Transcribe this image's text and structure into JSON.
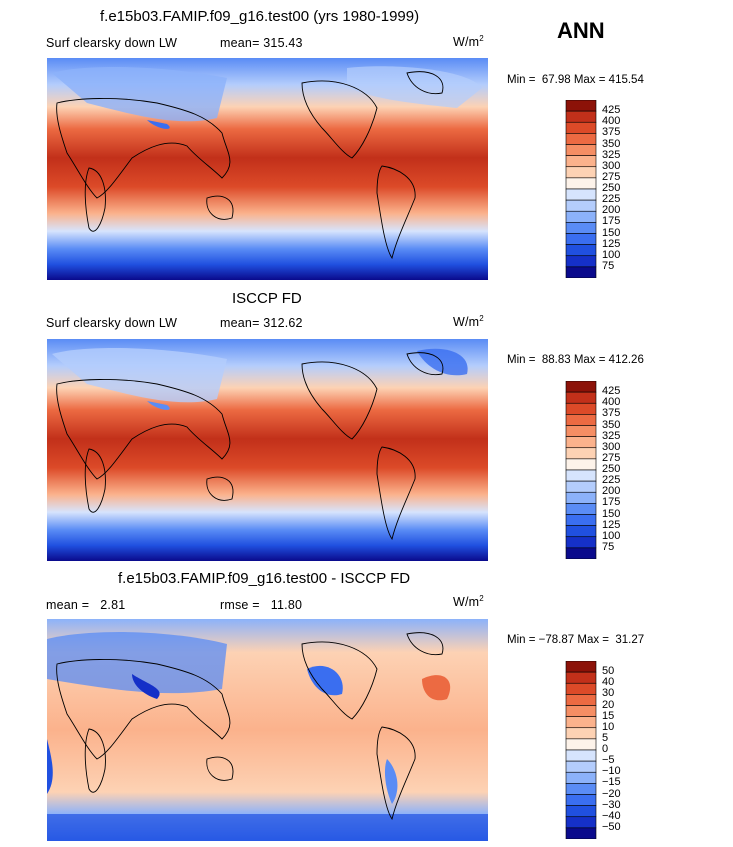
{
  "season": "ANN",
  "colors": {
    "absolute": [
      "#0a0a8c",
      "#1530c8",
      "#2050e0",
      "#3a6ef0",
      "#5a8cf5",
      "#8cb2fa",
      "#b4cdfc",
      "#d6e4fd",
      "#fdf3ea",
      "#fdd2b4",
      "#fbb28c",
      "#f58e64",
      "#ec6a42",
      "#dc4a28",
      "#c2301a",
      "#8c1208"
    ],
    "difference": [
      "#0a0a8c",
      "#1530c8",
      "#2050e0",
      "#3a6ef0",
      "#5a8cf5",
      "#8cb2fa",
      "#b4cdfc",
      "#d6e4fd",
      "#fdf3ea",
      "#fdd2b4",
      "#fbb28c",
      "#f58e64",
      "#ec6a42",
      "#dc4a28",
      "#c2301a",
      "#8c1208"
    ]
  },
  "chart_data": [
    {
      "type": "heatmap",
      "title": "f.e15b03.FAMIP.f09_g16.test00 (yrs 1980-1999)",
      "variable": "Surf clearsky down LW",
      "mean_label": "mean=",
      "mean": "315.43",
      "units": "W/m",
      "units_exp": "2",
      "min_label": "Min =",
      "min": "67.98",
      "max_label": "Max =",
      "max": "415.54",
      "levels": [
        "425",
        "400",
        "375",
        "350",
        "325",
        "300",
        "275",
        "250",
        "225",
        "200",
        "175",
        "150",
        "125",
        "100",
        "75"
      ],
      "palette": "absolute"
    },
    {
      "type": "heatmap",
      "title": "ISCCP FD",
      "variable": "Surf clearsky down LW",
      "mean_label": "mean=",
      "mean": "312.62",
      "units": "W/m",
      "units_exp": "2",
      "min_label": "Min =",
      "min": "88.83",
      "max_label": "Max =",
      "max": "412.26",
      "levels": [
        "425",
        "400",
        "375",
        "350",
        "325",
        "300",
        "275",
        "250",
        "225",
        "200",
        "175",
        "150",
        "125",
        "100",
        "75"
      ],
      "palette": "absolute"
    },
    {
      "type": "heatmap",
      "title": "f.e15b03.FAMIP.f09_g16.test00 - ISCCP FD",
      "mean_label": "mean =",
      "mean": "2.81",
      "rmse_label": "rmse =",
      "rmse": "11.80",
      "units": "W/m",
      "units_exp": "2",
      "min_label": "Min =",
      "min": "−78.87",
      "max_label": "Max =",
      "max": "31.27",
      "levels": [
        "50",
        "40",
        "30",
        "20",
        "15",
        "10",
        "5",
        "0",
        "−5",
        "−10",
        "−15",
        "−20",
        "−30",
        "−40",
        "−50"
      ],
      "palette": "difference"
    }
  ]
}
